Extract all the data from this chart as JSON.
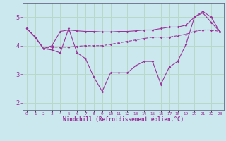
{
  "background_color": "#cce8ef",
  "grid_color": "#aaddcc",
  "line_color": "#993399",
  "xlabel": "Windchill (Refroidissement éolien,°C)",
  "x_values": [
    0,
    1,
    2,
    3,
    4,
    5,
    6,
    7,
    8,
    9,
    10,
    11,
    12,
    13,
    14,
    15,
    16,
    17,
    18,
    19,
    20,
    21,
    22,
    23
  ],
  "ylim": [
    1.75,
    5.5
  ],
  "xlim": [
    -0.5,
    23.5
  ],
  "series1": [
    4.6,
    4.3,
    3.9,
    3.85,
    3.75,
    4.6,
    3.75,
    3.55,
    2.9,
    2.4,
    3.05,
    3.05,
    3.05,
    3.3,
    3.45,
    3.45,
    2.65,
    3.25,
    3.45,
    4.05,
    5.0,
    5.2,
    5.0,
    4.5
  ],
  "series2": [
    4.6,
    4.3,
    3.9,
    3.95,
    3.95,
    3.95,
    3.98,
    4.0,
    4.0,
    4.0,
    4.05,
    4.1,
    4.15,
    4.2,
    4.25,
    4.3,
    4.3,
    4.3,
    4.35,
    4.4,
    4.5,
    4.55,
    4.55,
    4.5
  ],
  "series3": [
    4.6,
    4.3,
    3.9,
    4.0,
    4.5,
    4.55,
    4.52,
    4.5,
    4.5,
    4.48,
    4.48,
    4.5,
    4.5,
    4.52,
    4.55,
    4.55,
    4.6,
    4.65,
    4.65,
    4.72,
    5.0,
    5.15,
    4.82,
    4.5
  ],
  "yticks": [
    2,
    3,
    4,
    5
  ],
  "xtick_labels": [
    "0",
    "1",
    "2",
    "3",
    "4",
    "5",
    "6",
    "7",
    "8",
    "9",
    "10",
    "11",
    "12",
    "13",
    "14",
    "15",
    "16",
    "17",
    "18",
    "19",
    "20",
    "21",
    "22",
    "23"
  ]
}
